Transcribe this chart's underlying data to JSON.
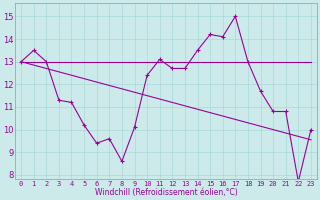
{
  "x_values": [
    0,
    1,
    2,
    3,
    4,
    5,
    6,
    7,
    8,
    9,
    10,
    11,
    12,
    13,
    14,
    15,
    16,
    17,
    18,
    19,
    20,
    21,
    22,
    23
  ],
  "line1": [
    13.0,
    13.5,
    13.0,
    11.3,
    11.2,
    10.2,
    9.4,
    9.6,
    8.6,
    10.1,
    12.4,
    13.1,
    12.7,
    12.7,
    13.5,
    14.2,
    14.1,
    15.0,
    13.0,
    11.7,
    10.8,
    10.8,
    7.7,
    10.0
  ],
  "line2_slope": [
    13.0,
    12.85,
    12.7,
    12.55,
    12.4,
    12.25,
    12.1,
    11.95,
    11.8,
    11.65,
    11.5,
    11.35,
    11.2,
    11.05,
    10.9,
    10.75,
    10.6,
    10.45,
    10.3,
    10.15,
    10.0,
    9.85,
    9.7,
    9.55
  ],
  "line3_flat": [
    13.0,
    13.0,
    13.0,
    13.0,
    13.0,
    13.0,
    13.0,
    13.0,
    13.0,
    13.0,
    13.0,
    13.0,
    13.0,
    13.0,
    13.0,
    13.0,
    13.0,
    13.0,
    13.0,
    13.0,
    13.0,
    13.0,
    13.0,
    13.0
  ],
  "bg_color": "#cceaea",
  "line_color": "#990099",
  "grid_color": "#aad8d8",
  "xlabel": "Windchill (Refroidissement éolien,°C)",
  "ylim": [
    7.8,
    15.6
  ],
  "yticks": [
    8,
    9,
    10,
    11,
    12,
    13,
    14,
    15
  ],
  "xlim": [
    -0.5,
    23.5
  ],
  "xtick_fontsize": 5.0,
  "ytick_fontsize": 6.0,
  "xlabel_fontsize": 5.5
}
